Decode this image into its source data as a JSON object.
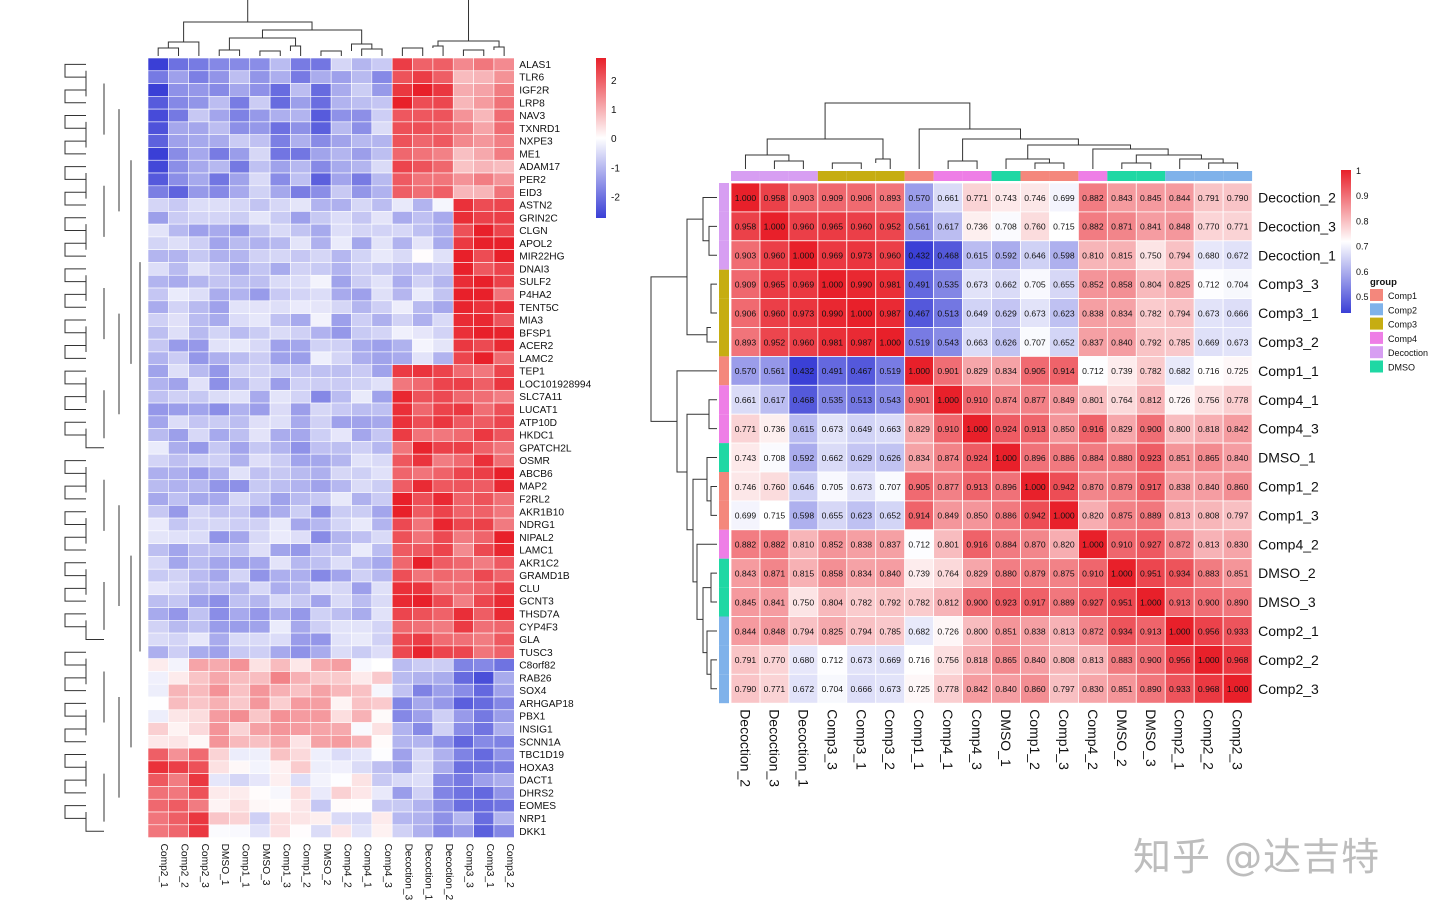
{
  "watermark": "知乎 @达吉特",
  "chart_data": [
    {
      "type": "heatmap",
      "columns": [
        "Comp2_1",
        "Comp2_2",
        "Comp2_3",
        "DMSO_1",
        "Comp1_1",
        "DMSO_3",
        "Comp1_3",
        "Comp1_2",
        "DMSO_2",
        "Comp4_2",
        "Comp4_1",
        "Comp4_3",
        "Decoction_3",
        "Decoction_1",
        "Decoction_2",
        "Comp3_3",
        "Comp3_1",
        "Comp3_2"
      ],
      "rows": [
        "ALAS1",
        "TLR6",
        "IGF2R",
        "LRP8",
        "NAV3",
        "TXNRD1",
        "NXPE3",
        "ME1",
        "ADAM17",
        "PER2",
        "EID3",
        "ASTN2",
        "GRIN2C",
        "CLGN",
        "APOL2",
        "MIR22HG",
        "DNAI3",
        "SULF2",
        "P4HA2",
        "TENT5C",
        "MIA3",
        "BFSP1",
        "ACER2",
        "LAMC2",
        "TEP1",
        "LOC101928994",
        "SLC7A11",
        "LUCAT1",
        "ATP10D",
        "HKDC1",
        "GPATCH2L",
        "OSMR",
        "ABCB6",
        "MAP2",
        "F2RL2",
        "AKR1B10",
        "NDRG1",
        "NIPAL2",
        "LAMC1",
        "AKR1C2",
        "GRAMD1B",
        "CLU",
        "GCNT3",
        "THSD7A",
        "CYP4F3",
        "GLA",
        "TUSC3",
        "C8orf82",
        "RAB26",
        "SOX4",
        "ARHGAP18",
        "PBX1",
        "INSIG1",
        "SCNN1A",
        "TBC1D19",
        "HOXA3",
        "DACT1",
        "DHRS2",
        "EOMES",
        "NRP1",
        "DKK1"
      ],
      "row_blocks": [
        {
          "rows": 11,
          "values": [
            -2.2,
            -1.5,
            -1.2,
            -1.3,
            -1.2,
            -1.0,
            -1.4,
            -1.3,
            -1.6,
            -1.0,
            -1.2,
            -1.0,
            2.2,
            2.0,
            1.8,
            1.2,
            1.0,
            1.1
          ]
        },
        {
          "rows": 13,
          "values": [
            -0.9,
            -0.8,
            -0.9,
            -0.7,
            -0.8,
            -0.8,
            -0.9,
            -0.8,
            -0.7,
            -0.8,
            -0.9,
            -0.7,
            -0.6,
            -0.5,
            -0.6,
            2.2,
            2.3,
            2.1
          ]
        },
        {
          "rows": 23,
          "values": [
            -0.8,
            -0.9,
            -0.8,
            -1.0,
            -0.9,
            -0.9,
            -0.8,
            -0.9,
            -1.0,
            -0.8,
            -0.8,
            -0.9,
            2.0,
            2.1,
            2.0,
            1.8,
            1.9,
            2.0
          ]
        },
        {
          "rows": 7,
          "values": [
            0.2,
            0.3,
            0.5,
            1.1,
            1.0,
            0.8,
            0.9,
            0.8,
            0.7,
            0.6,
            0.4,
            0.3,
            -1.2,
            -1.1,
            -1.0,
            -1.6,
            -1.8,
            -1.5
          ]
        },
        {
          "rows": 7,
          "values": [
            1.9,
            1.7,
            1.8,
            0.1,
            0.0,
            -0.1,
            0.2,
            0.1,
            -0.2,
            0.0,
            -0.1,
            -0.3,
            -1.0,
            -0.9,
            -1.1,
            -1.4,
            -1.6,
            -1.5
          ]
        }
      ],
      "scale": {
        "min": -2.5,
        "max": 2.5,
        "low_color": "#3a3fd6",
        "mid_color": "#ffffff",
        "high_color": "#e8202a"
      },
      "legend_ticks": [
        "2",
        "1",
        "0",
        "-1",
        "-2"
      ],
      "dendrograms": true
    },
    {
      "type": "heatmap",
      "labels": [
        "Decoction_2",
        "Decoction_3",
        "Decoction_1",
        "Comp3_3",
        "Comp3_1",
        "Comp3_2",
        "Comp1_1",
        "Comp4_1",
        "Comp4_3",
        "DMSO_1",
        "Comp1_2",
        "Comp1_3",
        "Comp4_2",
        "DMSO_2",
        "DMSO_3",
        "Comp2_1",
        "Comp2_2",
        "Comp2_3"
      ],
      "groups": [
        "Decoction",
        "Decoction",
        "Decoction",
        "Comp3",
        "Comp3",
        "Comp3",
        "Comp1",
        "Comp4",
        "Comp4",
        "DMSO",
        "Comp1",
        "Comp1",
        "Comp4",
        "DMSO",
        "DMSO",
        "Comp2",
        "Comp2",
        "Comp2"
      ],
      "matrix": [
        [
          "1.000",
          "0.958",
          "0.903",
          "0.909",
          "0.906",
          "0.893",
          "0.570",
          "0.661",
          "0.771",
          "0.743",
          "0.746",
          "0.699",
          "0.882",
          "0.843",
          "0.845",
          "0.844",
          "0.791",
          "0.790"
        ],
        [
          "0.958",
          "1.000",
          "0.960",
          "0.965",
          "0.960",
          "0.952",
          "0.561",
          "0.617",
          "0.736",
          "0.708",
          "0.760",
          "0.715",
          "0.882",
          "0.871",
          "0.841",
          "0.848",
          "0.770",
          "0.771"
        ],
        [
          "0.903",
          "0.960",
          "1.000",
          "0.969",
          "0.973",
          "0.960",
          "0.432",
          "0.468",
          "0.615",
          "0.592",
          "0.646",
          "0.598",
          "0.810",
          "0.815",
          "0.750",
          "0.794",
          "0.680",
          "0.672"
        ],
        [
          "0.909",
          "0.965",
          "0.969",
          "1.000",
          "0.990",
          "0.981",
          "0.491",
          "0.535",
          "0.673",
          "0.662",
          "0.705",
          "0.655",
          "0.852",
          "0.858",
          "0.804",
          "0.825",
          "0.712",
          "0.704"
        ],
        [
          "0.906",
          "0.960",
          "0.973",
          "0.990",
          "1.000",
          "0.987",
          "0.467",
          "0.513",
          "0.649",
          "0.629",
          "0.673",
          "0.623",
          "0.838",
          "0.834",
          "0.782",
          "0.794",
          "0.673",
          "0.666"
        ],
        [
          "0.893",
          "0.952",
          "0.960",
          "0.981",
          "0.987",
          "1.000",
          "0.519",
          "0.543",
          "0.663",
          "0.626",
          "0.707",
          "0.652",
          "0.837",
          "0.840",
          "0.792",
          "0.785",
          "0.669",
          "0.673"
        ],
        [
          "0.570",
          "0.561",
          "0.432",
          "0.491",
          "0.467",
          "0.519",
          "1.000",
          "0.901",
          "0.829",
          "0.834",
          "0.905",
          "0.914",
          "0.712",
          "0.739",
          "0.782",
          "0.682",
          "0.716",
          "0.725"
        ],
        [
          "0.661",
          "0.617",
          "0.468",
          "0.535",
          "0.513",
          "0.543",
          "0.901",
          "1.000",
          "0.910",
          "0.874",
          "0.877",
          "0.849",
          "0.801",
          "0.764",
          "0.812",
          "0.726",
          "0.756",
          "0.778"
        ],
        [
          "0.771",
          "0.736",
          "0.615",
          "0.673",
          "0.649",
          "0.663",
          "0.829",
          "0.910",
          "1.000",
          "0.924",
          "0.913",
          "0.850",
          "0.916",
          "0.829",
          "0.900",
          "0.800",
          "0.818",
          "0.842"
        ],
        [
          "0.743",
          "0.708",
          "0.592",
          "0.662",
          "0.629",
          "0.626",
          "0.834",
          "0.874",
          "0.924",
          "1.000",
          "0.896",
          "0.886",
          "0.884",
          "0.880",
          "0.923",
          "0.851",
          "0.865",
          "0.840"
        ],
        [
          "0.746",
          "0.760",
          "0.646",
          "0.705",
          "0.673",
          "0.707",
          "0.905",
          "0.877",
          "0.913",
          "0.896",
          "1.000",
          "0.942",
          "0.870",
          "0.879",
          "0.917",
          "0.838",
          "0.840",
          "0.860"
        ],
        [
          "0.699",
          "0.715",
          "0.598",
          "0.655",
          "0.623",
          "0.652",
          "0.914",
          "0.849",
          "0.850",
          "0.886",
          "0.942",
          "1.000",
          "0.820",
          "0.875",
          "0.889",
          "0.813",
          "0.808",
          "0.797"
        ],
        [
          "0.882",
          "0.882",
          "0.810",
          "0.852",
          "0.838",
          "0.837",
          "0.712",
          "0.801",
          "0.916",
          "0.884",
          "0.870",
          "0.820",
          "1.000",
          "0.910",
          "0.927",
          "0.872",
          "0.813",
          "0.830"
        ],
        [
          "0.843",
          "0.871",
          "0.815",
          "0.858",
          "0.834",
          "0.840",
          "0.739",
          "0.764",
          "0.829",
          "0.880",
          "0.879",
          "0.875",
          "0.910",
          "1.000",
          "0.951",
          "0.934",
          "0.883",
          "0.851"
        ],
        [
          "0.845",
          "0.841",
          "0.750",
          "0.804",
          "0.782",
          "0.792",
          "0.782",
          "0.812",
          "0.900",
          "0.923",
          "0.917",
          "0.889",
          "0.927",
          "0.951",
          "1.000",
          "0.913",
          "0.900",
          "0.890"
        ],
        [
          "0.844",
          "0.848",
          "0.794",
          "0.825",
          "0.794",
          "0.785",
          "0.682",
          "0.726",
          "0.800",
          "0.851",
          "0.838",
          "0.813",
          "0.872",
          "0.934",
          "0.913",
          "1.000",
          "0.956",
          "0.933"
        ],
        [
          "0.791",
          "0.770",
          "0.680",
          "0.712",
          "0.673",
          "0.669",
          "0.716",
          "0.756",
          "0.818",
          "0.865",
          "0.840",
          "0.808",
          "0.813",
          "0.883",
          "0.900",
          "0.956",
          "1.000",
          "0.968"
        ],
        [
          "0.790",
          "0.771",
          "0.672",
          "0.704",
          "0.666",
          "0.673",
          "0.725",
          "0.778",
          "0.842",
          "0.840",
          "0.860",
          "0.797",
          "0.830",
          "0.851",
          "0.890",
          "0.933",
          "0.968",
          "1.000"
        ]
      ],
      "scale": {
        "min": 0.43,
        "max": 1.0,
        "low_color": "#3a3fd6",
        "mid_color": "#ffffff",
        "high_color": "#e8202a"
      },
      "legend_ticks": [
        "1",
        "0.9",
        "0.8",
        "0.7",
        "0.6",
        "0.5"
      ],
      "legend_title": "group",
      "group_legend": [
        {
          "name": "Comp1",
          "color": "#f4877c"
        },
        {
          "name": "Comp2",
          "color": "#7fb2ea"
        },
        {
          "name": "Comp3",
          "color": "#c6ad12"
        },
        {
          "name": "Comp4",
          "color": "#ee7ee6"
        },
        {
          "name": "Decoction",
          "color": "#d79ef2"
        },
        {
          "name": "DMSO",
          "color": "#1fd8a4"
        }
      ],
      "dendrograms": true
    }
  ]
}
